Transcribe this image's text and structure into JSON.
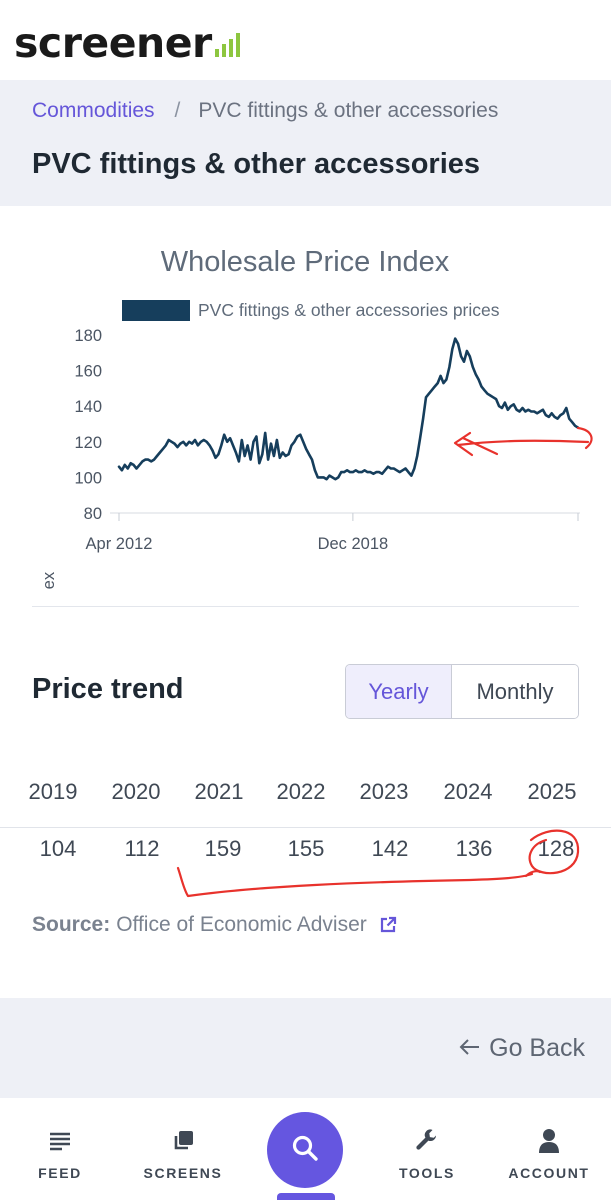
{
  "header": {
    "logo_text": "screener",
    "logo_accent": "#8dc63f"
  },
  "breadcrumb": {
    "root": "Commodities",
    "separator": "/",
    "current": "PVC fittings & other accessories"
  },
  "page": {
    "title": "PVC fittings & other accessories"
  },
  "chart_data": {
    "type": "line",
    "title": "Wholesale Price Index",
    "ylabel": "Wholesale Price Index",
    "xlabel": "",
    "ylim": [
      80,
      180
    ],
    "y_ticks": [
      80,
      100,
      120,
      140,
      160,
      180
    ],
    "x_ticks": [
      "Apr 2012",
      "Dec 2018"
    ],
    "x_range": [
      "2012-04",
      "2025-05"
    ],
    "legend_position": "top",
    "grid": false,
    "series": [
      {
        "name": "PVC fittings & other accessories prices",
        "color": "#163e5c",
        "points": [
          [
            "2012-04",
            106
          ],
          [
            "2012-05",
            104
          ],
          [
            "2012-06",
            107
          ],
          [
            "2012-07",
            105
          ],
          [
            "2012-08",
            108
          ],
          [
            "2012-09",
            107
          ],
          [
            "2012-10",
            105
          ],
          [
            "2012-11",
            107
          ],
          [
            "2012-12",
            109
          ],
          [
            "2013-01",
            110
          ],
          [
            "2013-02",
            110
          ],
          [
            "2013-03",
            109
          ],
          [
            "2013-04",
            110
          ],
          [
            "2013-05",
            112
          ],
          [
            "2013-06",
            114
          ],
          [
            "2013-07",
            116
          ],
          [
            "2013-08",
            118
          ],
          [
            "2013-09",
            121
          ],
          [
            "2013-10",
            120
          ],
          [
            "2013-11",
            119
          ],
          [
            "2013-12",
            117
          ],
          [
            "2014-01",
            119
          ],
          [
            "2014-02",
            120
          ],
          [
            "2014-03",
            118
          ],
          [
            "2014-04",
            120
          ],
          [
            "2014-05",
            119
          ],
          [
            "2014-06",
            121
          ],
          [
            "2014-07",
            118
          ],
          [
            "2014-08",
            120
          ],
          [
            "2014-09",
            121
          ],
          [
            "2014-10",
            120
          ],
          [
            "2014-11",
            118
          ],
          [
            "2014-12",
            115
          ],
          [
            "2015-01",
            111
          ],
          [
            "2015-02",
            113
          ],
          [
            "2015-03",
            118
          ],
          [
            "2015-04",
            124
          ],
          [
            "2015-05",
            120
          ],
          [
            "2015-06",
            122
          ],
          [
            "2015-07",
            118
          ],
          [
            "2015-08",
            114
          ],
          [
            "2015-09",
            109
          ],
          [
            "2015-10",
            121
          ],
          [
            "2015-11",
            112
          ],
          [
            "2015-12",
            118
          ],
          [
            "2016-01",
            110
          ],
          [
            "2016-02",
            120
          ],
          [
            "2016-03",
            123
          ],
          [
            "2016-04",
            108
          ],
          [
            "2016-05",
            113
          ],
          [
            "2016-06",
            125
          ],
          [
            "2016-07",
            110
          ],
          [
            "2016-08",
            119
          ],
          [
            "2016-09",
            112
          ],
          [
            "2016-10",
            121
          ],
          [
            "2016-11",
            111
          ],
          [
            "2016-12",
            114
          ],
          [
            "2017-01",
            112
          ],
          [
            "2017-02",
            113
          ],
          [
            "2017-03",
            118
          ],
          [
            "2017-04",
            120
          ],
          [
            "2017-05",
            123
          ],
          [
            "2017-06",
            124
          ],
          [
            "2017-07",
            120
          ],
          [
            "2017-08",
            116
          ],
          [
            "2017-09",
            113
          ],
          [
            "2017-10",
            110
          ],
          [
            "2017-11",
            104
          ],
          [
            "2017-12",
            100
          ],
          [
            "2018-01",
            100
          ],
          [
            "2018-02",
            100
          ],
          [
            "2018-03",
            99
          ],
          [
            "2018-04",
            101
          ],
          [
            "2018-05",
            100
          ],
          [
            "2018-06",
            99
          ],
          [
            "2018-07",
            100
          ],
          [
            "2018-08",
            103
          ],
          [
            "2018-09",
            103
          ],
          [
            "2018-10",
            104
          ],
          [
            "2018-11",
            103
          ],
          [
            "2018-12",
            103
          ],
          [
            "2019-01",
            104
          ],
          [
            "2019-02",
            103
          ],
          [
            "2019-03",
            103
          ],
          [
            "2019-04",
            104
          ],
          [
            "2019-05",
            103
          ],
          [
            "2019-06",
            103
          ],
          [
            "2019-07",
            102
          ],
          [
            "2019-08",
            103
          ],
          [
            "2019-09",
            103
          ],
          [
            "2019-10",
            102
          ],
          [
            "2019-11",
            104
          ],
          [
            "2019-12",
            106
          ],
          [
            "2020-01",
            105
          ],
          [
            "2020-02",
            105
          ],
          [
            "2020-03",
            104
          ],
          [
            "2020-04",
            103
          ],
          [
            "2020-05",
            104
          ],
          [
            "2020-06",
            105
          ],
          [
            "2020-07",
            103
          ],
          [
            "2020-08",
            101
          ],
          [
            "2020-09",
            105
          ],
          [
            "2020-10",
            112
          ],
          [
            "2020-11",
            122
          ],
          [
            "2020-12",
            133
          ],
          [
            "2021-01",
            145
          ],
          [
            "2021-02",
            147
          ],
          [
            "2021-03",
            149
          ],
          [
            "2021-04",
            151
          ],
          [
            "2021-05",
            153
          ],
          [
            "2021-06",
            157
          ],
          [
            "2021-07",
            153
          ],
          [
            "2021-08",
            155
          ],
          [
            "2021-09",
            162
          ],
          [
            "2021-10",
            172
          ],
          [
            "2021-11",
            178
          ],
          [
            "2021-12",
            175
          ],
          [
            "2022-01",
            168
          ],
          [
            "2022-02",
            165
          ],
          [
            "2022-03",
            171
          ],
          [
            "2022-04",
            168
          ],
          [
            "2022-05",
            162
          ],
          [
            "2022-06",
            158
          ],
          [
            "2022-07",
            155
          ],
          [
            "2022-08",
            151
          ],
          [
            "2022-09",
            149
          ],
          [
            "2022-10",
            147
          ],
          [
            "2022-11",
            146
          ],
          [
            "2022-12",
            145
          ],
          [
            "2023-01",
            144
          ],
          [
            "2023-02",
            140
          ],
          [
            "2023-03",
            139
          ],
          [
            "2023-04",
            142
          ],
          [
            "2023-05",
            138
          ],
          [
            "2023-06",
            140
          ],
          [
            "2023-07",
            141
          ],
          [
            "2023-08",
            138
          ],
          [
            "2023-09",
            137
          ],
          [
            "2023-10",
            139
          ],
          [
            "2023-11",
            137
          ],
          [
            "2023-12",
            138
          ],
          [
            "2024-01",
            137
          ],
          [
            "2024-02",
            137
          ],
          [
            "2024-03",
            136
          ],
          [
            "2024-04",
            137
          ],
          [
            "2024-05",
            138
          ],
          [
            "2024-06",
            135
          ],
          [
            "2024-07",
            134
          ],
          [
            "2024-08",
            136
          ],
          [
            "2024-09",
            134
          ],
          [
            "2024-10",
            133
          ],
          [
            "2024-11",
            135
          ],
          [
            "2024-12",
            136
          ],
          [
            "2025-01",
            139
          ],
          [
            "2025-02",
            133
          ],
          [
            "2025-03",
            131
          ],
          [
            "2025-04",
            129
          ],
          [
            "2025-05",
            128
          ]
        ]
      }
    ]
  },
  "price_trend": {
    "title": "Price trend",
    "toggle": {
      "yearly": "Yearly",
      "monthly": "Monthly",
      "selected": "Yearly"
    },
    "years": [
      "2019",
      "2020",
      "2021",
      "2022",
      "2023",
      "2024",
      "2025"
    ],
    "values": [
      "104",
      "112",
      "159",
      "155",
      "142",
      "136",
      "128"
    ]
  },
  "source": {
    "label": "Source:",
    "text": "Office of Economic Adviser"
  },
  "go_back": {
    "label": "Go Back"
  },
  "nav": {
    "feed": "FEED",
    "screens": "SCREENS",
    "tools": "TOOLS",
    "account": "ACCOUNT"
  },
  "colors": {
    "accent": "#6556d9",
    "series": "#163e5c",
    "annotation": "#e8322c"
  }
}
